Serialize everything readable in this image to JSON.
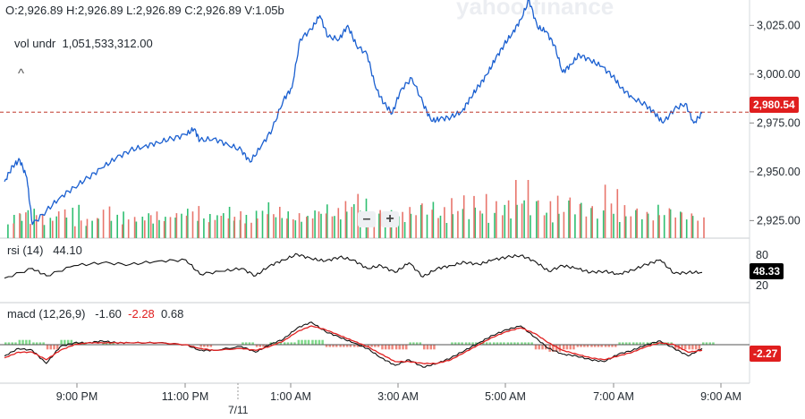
{
  "header": {
    "ohlcv": "O:2,926.89   H:2,926.89   L:2,926.89   C:2,926.89   V:1.05b",
    "vol_label": "vol undr",
    "vol_value": "1,051,533,312.00",
    "collapse_glyph": "^",
    "watermark": "yahoo!finance"
  },
  "zoom": {
    "minus": "–",
    "plus": "+"
  },
  "rsi": {
    "label": "rsi (14)",
    "value": "44.10",
    "level_high": "80",
    "level_low": "20",
    "tag": "48.33"
  },
  "macd": {
    "label": "macd (12,26,9)",
    "v1": "-1.60",
    "v2": "-2.28",
    "v3": "0.68",
    "tag": "-2.27"
  },
  "price_tag": "2,980.54",
  "colors": {
    "price_line": "#1a5fd0",
    "signal": "#e02020",
    "up": "#2fbf71",
    "down": "#e8756c",
    "tag_red": "#e01e1e"
  },
  "chart_data": {
    "type": "line",
    "x_ticks": [
      "9:00 PM",
      "11:00 PM",
      "1:00 AM",
      "3:00 AM",
      "5:00 AM",
      "7:00 AM",
      "9:00 AM"
    ],
    "date_marker": "7/11",
    "y_ticks": [
      "3,025.00",
      "3,000.00",
      "2,975.00",
      "2,950.00",
      "2,925.00"
    ],
    "ylim": [
      2916,
      3038
    ],
    "price_series": [
      [
        0,
        2945
      ],
      [
        0.3,
        2953
      ],
      [
        0.55,
        2956
      ],
      [
        0.8,
        2947
      ],
      [
        1.0,
        2923
      ],
      [
        1.5,
        2930
      ],
      [
        2.0,
        2937
      ],
      [
        2.5,
        2942
      ],
      [
        3.0,
        2947
      ],
      [
        3.5,
        2952
      ],
      [
        4.0,
        2957
      ],
      [
        4.5,
        2961
      ],
      [
        5.0,
        2963
      ],
      [
        5.5,
        2965
      ],
      [
        6.0,
        2967
      ],
      [
        6.5,
        2969
      ],
      [
        6.8,
        2972
      ],
      [
        7.0,
        2966
      ],
      [
        7.5,
        2967
      ],
      [
        8.0,
        2964
      ],
      [
        8.5,
        2961
      ],
      [
        8.8,
        2955
      ],
      [
        9.2,
        2963
      ],
      [
        9.6,
        2972
      ],
      [
        10.0,
        2987
      ],
      [
        10.3,
        2993
      ],
      [
        10.6,
        3018
      ],
      [
        11.0,
        3023
      ],
      [
        11.3,
        3030
      ],
      [
        11.6,
        3019
      ],
      [
        12.0,
        3018
      ],
      [
        12.3,
        3025
      ],
      [
        12.6,
        3015
      ],
      [
        13.0,
        3010
      ],
      [
        13.3,
        2993
      ],
      [
        13.6,
        2985
      ],
      [
        13.9,
        2980
      ],
      [
        14.2,
        2992
      ],
      [
        14.6,
        2998
      ],
      [
        15.0,
        2985
      ],
      [
        15.3,
        2976
      ],
      [
        15.6,
        2977
      ],
      [
        16.0,
        2978
      ],
      [
        16.4,
        2981
      ],
      [
        16.7,
        2988
      ],
      [
        17.0,
        2994
      ],
      [
        17.3,
        3000
      ],
      [
        17.6,
        3008
      ],
      [
        17.9,
        3015
      ],
      [
        18.2,
        3021
      ],
      [
        18.5,
        3028
      ],
      [
        18.8,
        3038
      ],
      [
        19.1,
        3024
      ],
      [
        19.4,
        3022
      ],
      [
        19.7,
        3015
      ],
      [
        20.0,
        3001
      ],
      [
        20.3,
        3005
      ],
      [
        20.6,
        3010
      ],
      [
        21.0,
        3007
      ],
      [
        21.4,
        3004
      ],
      [
        21.8,
        2999
      ],
      [
        22.1,
        2993
      ],
      [
        22.5,
        2988
      ],
      [
        23.0,
        2984
      ],
      [
        23.3,
        2980
      ],
      [
        23.6,
        2975
      ],
      [
        24.0,
        2982
      ],
      [
        24.4,
        2985
      ],
      [
        24.7,
        2975
      ],
      [
        25.0,
        2980
      ]
    ],
    "volume_series": {
      "up": [
        [
          0.1,
          28
        ],
        [
          0.6,
          34
        ],
        [
          1.4,
          25
        ],
        [
          2.2,
          38
        ],
        [
          2.9,
          22
        ],
        [
          3.8,
          30
        ],
        [
          4.7,
          28
        ],
        [
          5.3,
          24
        ],
        [
          6.1,
          33
        ],
        [
          6.9,
          27
        ],
        [
          7.6,
          35
        ],
        [
          8.2,
          26
        ],
        [
          9.0,
          40
        ],
        [
          9.7,
          30
        ],
        [
          10.4,
          25
        ],
        [
          11.1,
          38
        ],
        [
          11.8,
          30
        ],
        [
          12.5,
          45
        ],
        [
          13.4,
          32
        ],
        [
          14.1,
          28
        ],
        [
          14.9,
          42
        ],
        [
          15.6,
          28
        ],
        [
          16.4,
          36
        ],
        [
          17.1,
          30
        ],
        [
          17.9,
          40
        ],
        [
          18.6,
          45
        ],
        [
          19.4,
          30
        ],
        [
          20.2,
          44
        ],
        [
          21.0,
          35
        ],
        [
          21.8,
          28
        ],
        [
          22.6,
          32
        ],
        [
          23.4,
          38
        ],
        [
          24.2,
          30
        ]
      ],
      "down": [
        [
          0.3,
          30
        ],
        [
          0.9,
          28
        ],
        [
          1.7,
          33
        ],
        [
          2.5,
          22
        ],
        [
          3.3,
          36
        ],
        [
          4.2,
          24
        ],
        [
          5.0,
          30
        ],
        [
          5.7,
          28
        ],
        [
          6.5,
          36
        ],
        [
          7.3,
          25
        ],
        [
          8.0,
          30
        ],
        [
          8.6,
          22
        ],
        [
          9.4,
          35
        ],
        [
          10.1,
          28
        ],
        [
          10.8,
          30
        ],
        [
          11.5,
          34
        ],
        [
          12.2,
          50
        ],
        [
          13.0,
          32
        ],
        [
          13.8,
          30
        ],
        [
          14.5,
          40
        ],
        [
          15.3,
          36
        ],
        [
          16.0,
          50
        ],
        [
          16.8,
          52
        ],
        [
          17.6,
          45
        ],
        [
          18.3,
          70
        ],
        [
          19.1,
          45
        ],
        [
          19.8,
          50
        ],
        [
          20.6,
          40
        ],
        [
          21.5,
          62
        ],
        [
          22.2,
          38
        ],
        [
          23.0,
          30
        ],
        [
          23.8,
          34
        ],
        [
          24.6,
          28
        ]
      ]
    },
    "rsi_series": [
      [
        0,
        38
      ],
      [
        1,
        55
      ],
      [
        1.5,
        42
      ],
      [
        2.5,
        60
      ],
      [
        3.5,
        65
      ],
      [
        4.5,
        62
      ],
      [
        5.5,
        68
      ],
      [
        6.5,
        70
      ],
      [
        7.0,
        45
      ],
      [
        7.8,
        50
      ],
      [
        8.5,
        55
      ],
      [
        9.0,
        42
      ],
      [
        9.5,
        60
      ],
      [
        10.0,
        70
      ],
      [
        10.5,
        80
      ],
      [
        11.0,
        72
      ],
      [
        11.5,
        68
      ],
      [
        12.0,
        75
      ],
      [
        12.5,
        70
      ],
      [
        13.0,
        55
      ],
      [
        13.5,
        60
      ],
      [
        14.0,
        48
      ],
      [
        14.5,
        65
      ],
      [
        15.0,
        40
      ],
      [
        15.5,
        55
      ],
      [
        16.0,
        60
      ],
      [
        16.5,
        66
      ],
      [
        17.0,
        62
      ],
      [
        17.5,
        70
      ],
      [
        18.0,
        75
      ],
      [
        18.5,
        78
      ],
      [
        19.0,
        68
      ],
      [
        19.5,
        50
      ],
      [
        20.0,
        60
      ],
      [
        20.5,
        55
      ],
      [
        21.0,
        48
      ],
      [
        21.5,
        50
      ],
      [
        22.0,
        45
      ],
      [
        22.5,
        52
      ],
      [
        23.0,
        62
      ],
      [
        23.5,
        70
      ],
      [
        24.0,
        46
      ],
      [
        24.5,
        48
      ],
      [
        25.0,
        48
      ]
    ],
    "macd_series": [
      [
        0,
        -6
      ],
      [
        0.5,
        -2
      ],
      [
        1.0,
        -3
      ],
      [
        1.5,
        -10
      ],
      [
        2.0,
        -1
      ],
      [
        2.5,
        1
      ],
      [
        3.0,
        1
      ],
      [
        3.5,
        2
      ],
      [
        4.0,
        1
      ],
      [
        4.5,
        1
      ],
      [
        5.5,
        1
      ],
      [
        6.5,
        0
      ],
      [
        7.0,
        -3
      ],
      [
        7.5,
        -3
      ],
      [
        8.5,
        -1
      ],
      [
        9.0,
        -4
      ],
      [
        9.5,
        0
      ],
      [
        10.0,
        3
      ],
      [
        10.5,
        9
      ],
      [
        11.0,
        12
      ],
      [
        11.5,
        7
      ],
      [
        12.0,
        4
      ],
      [
        12.5,
        1
      ],
      [
        13.0,
        -2
      ],
      [
        13.5,
        -7
      ],
      [
        14.0,
        -11
      ],
      [
        14.5,
        -8
      ],
      [
        15.0,
        -12
      ],
      [
        15.5,
        -10
      ],
      [
        16.0,
        -7
      ],
      [
        16.5,
        -3
      ],
      [
        17.0,
        1
      ],
      [
        17.5,
        5
      ],
      [
        18.0,
        8
      ],
      [
        18.5,
        10
      ],
      [
        19.0,
        4
      ],
      [
        19.5,
        -2
      ],
      [
        20.0,
        -5
      ],
      [
        20.5,
        -6
      ],
      [
        21.0,
        -8
      ],
      [
        21.5,
        -9
      ],
      [
        22.0,
        -5
      ],
      [
        22.5,
        -3
      ],
      [
        23.0,
        0
      ],
      [
        23.5,
        2
      ],
      [
        24.0,
        -2
      ],
      [
        24.5,
        -6
      ],
      [
        25.0,
        -2
      ]
    ],
    "signal_series": [
      [
        0,
        -7
      ],
      [
        0.5,
        -4
      ],
      [
        1.0,
        -4
      ],
      [
        1.5,
        -8
      ],
      [
        2.0,
        -3
      ],
      [
        2.5,
        0
      ],
      [
        3.0,
        1
      ],
      [
        3.5,
        1
      ],
      [
        4.0,
        1
      ],
      [
        4.5,
        1
      ],
      [
        5.5,
        1
      ],
      [
        6.5,
        0
      ],
      [
        7.0,
        -2
      ],
      [
        7.5,
        -3
      ],
      [
        8.5,
        -2
      ],
      [
        9.0,
        -3
      ],
      [
        9.5,
        -1
      ],
      [
        10.0,
        2
      ],
      [
        10.5,
        7
      ],
      [
        11.0,
        10
      ],
      [
        11.5,
        8
      ],
      [
        12.0,
        5
      ],
      [
        12.5,
        2
      ],
      [
        13.0,
        -1
      ],
      [
        13.5,
        -5
      ],
      [
        14.0,
        -9
      ],
      [
        14.5,
        -9
      ],
      [
        15.0,
        -10
      ],
      [
        15.5,
        -10
      ],
      [
        16.0,
        -8
      ],
      [
        16.5,
        -4
      ],
      [
        17.0,
        0
      ],
      [
        17.5,
        4
      ],
      [
        18.0,
        7
      ],
      [
        18.5,
        9
      ],
      [
        19.0,
        6
      ],
      [
        19.5,
        1
      ],
      [
        20.0,
        -3
      ],
      [
        20.5,
        -5
      ],
      [
        21.0,
        -7
      ],
      [
        21.5,
        -8
      ],
      [
        22.0,
        -6
      ],
      [
        22.5,
        -4
      ],
      [
        23.0,
        -1
      ],
      [
        23.5,
        1
      ],
      [
        24.0,
        0
      ],
      [
        24.5,
        -4
      ],
      [
        25.0,
        -3
      ]
    ],
    "current_price": 2980.54
  }
}
